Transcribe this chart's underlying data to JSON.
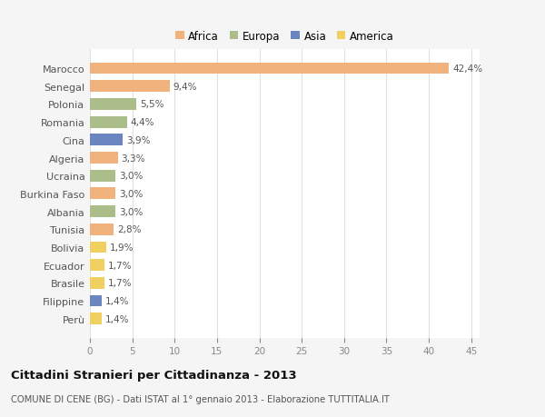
{
  "categories": [
    "Marocco",
    "Senegal",
    "Polonia",
    "Romania",
    "Cina",
    "Algeria",
    "Ucraina",
    "Burkina Faso",
    "Albania",
    "Tunisia",
    "Bolivia",
    "Ecuador",
    "Brasile",
    "Filippine",
    "Perù"
  ],
  "values": [
    42.4,
    9.4,
    5.5,
    4.4,
    3.9,
    3.3,
    3.0,
    3.0,
    3.0,
    2.8,
    1.9,
    1.7,
    1.7,
    1.4,
    1.4
  ],
  "labels": [
    "42,4%",
    "9,4%",
    "5,5%",
    "4,4%",
    "3,9%",
    "3,3%",
    "3,0%",
    "3,0%",
    "3,0%",
    "2,8%",
    "1,9%",
    "1,7%",
    "1,7%",
    "1,4%",
    "1,4%"
  ],
  "colors": [
    "#f2b27e",
    "#f2b27e",
    "#abbe8a",
    "#abbe8a",
    "#6b85c0",
    "#f2b27e",
    "#abbe8a",
    "#f2b27e",
    "#abbe8a",
    "#f2b27e",
    "#f0d060",
    "#f0d060",
    "#f0d060",
    "#6b85c0",
    "#f0d060"
  ],
  "continent_labels": [
    "Africa",
    "Europa",
    "Asia",
    "America"
  ],
  "continent_colors": [
    "#f2b27e",
    "#abbe8a",
    "#6b85c0",
    "#f0d060"
  ],
  "title": "Cittadini Stranieri per Cittadinanza - 2013",
  "subtitle": "COMUNE DI CENE (BG) - Dati ISTAT al 1° gennaio 2013 - Elaborazione TUTTITALIA.IT",
  "xlim": [
    0,
    46
  ],
  "xticks": [
    0,
    5,
    10,
    15,
    20,
    25,
    30,
    35,
    40,
    45
  ],
  "background_color": "#f5f5f5",
  "plot_bg_color": "#ffffff",
  "grid_color": "#e0e0e0"
}
